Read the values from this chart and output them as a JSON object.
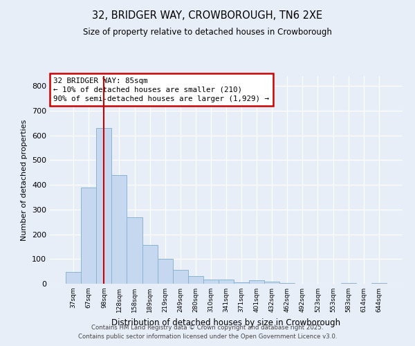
{
  "title1": "32, BRIDGER WAY, CROWBOROUGH, TN6 2XE",
  "title2": "Size of property relative to detached houses in Crowborough",
  "xlabel": "Distribution of detached houses by size in Crowborough",
  "ylabel": "Number of detached properties",
  "categories": [
    "37sqm",
    "67sqm",
    "98sqm",
    "128sqm",
    "158sqm",
    "189sqm",
    "219sqm",
    "249sqm",
    "280sqm",
    "310sqm",
    "341sqm",
    "371sqm",
    "401sqm",
    "432sqm",
    "462sqm",
    "492sqm",
    "523sqm",
    "553sqm",
    "583sqm",
    "614sqm",
    "644sqm"
  ],
  "values": [
    48,
    390,
    630,
    440,
    270,
    158,
    100,
    57,
    30,
    17,
    16,
    6,
    14,
    8,
    4,
    0,
    0,
    0,
    4,
    0,
    4
  ],
  "bar_color": "#c5d8ef",
  "bar_edge_color": "#8ab4d4",
  "redline_x": 2.0,
  "annotation_lines": [
    "32 BRIDGER WAY: 85sqm",
    "← 10% of detached houses are smaller (210)",
    "90% of semi-detached houses are larger (1,929) →"
  ],
  "annotation_box_color": "#ffffff",
  "annotation_box_edgecolor": "#cc0000",
  "footer1": "Contains HM Land Registry data © Crown copyright and database right 2025.",
  "footer2": "Contains public sector information licensed under the Open Government Licence v3.0.",
  "background_color": "#e8eef8",
  "plot_bg_color": "#e8eef8",
  "ylim": [
    0,
    840
  ],
  "yticks": [
    0,
    100,
    200,
    300,
    400,
    500,
    600,
    700,
    800
  ]
}
